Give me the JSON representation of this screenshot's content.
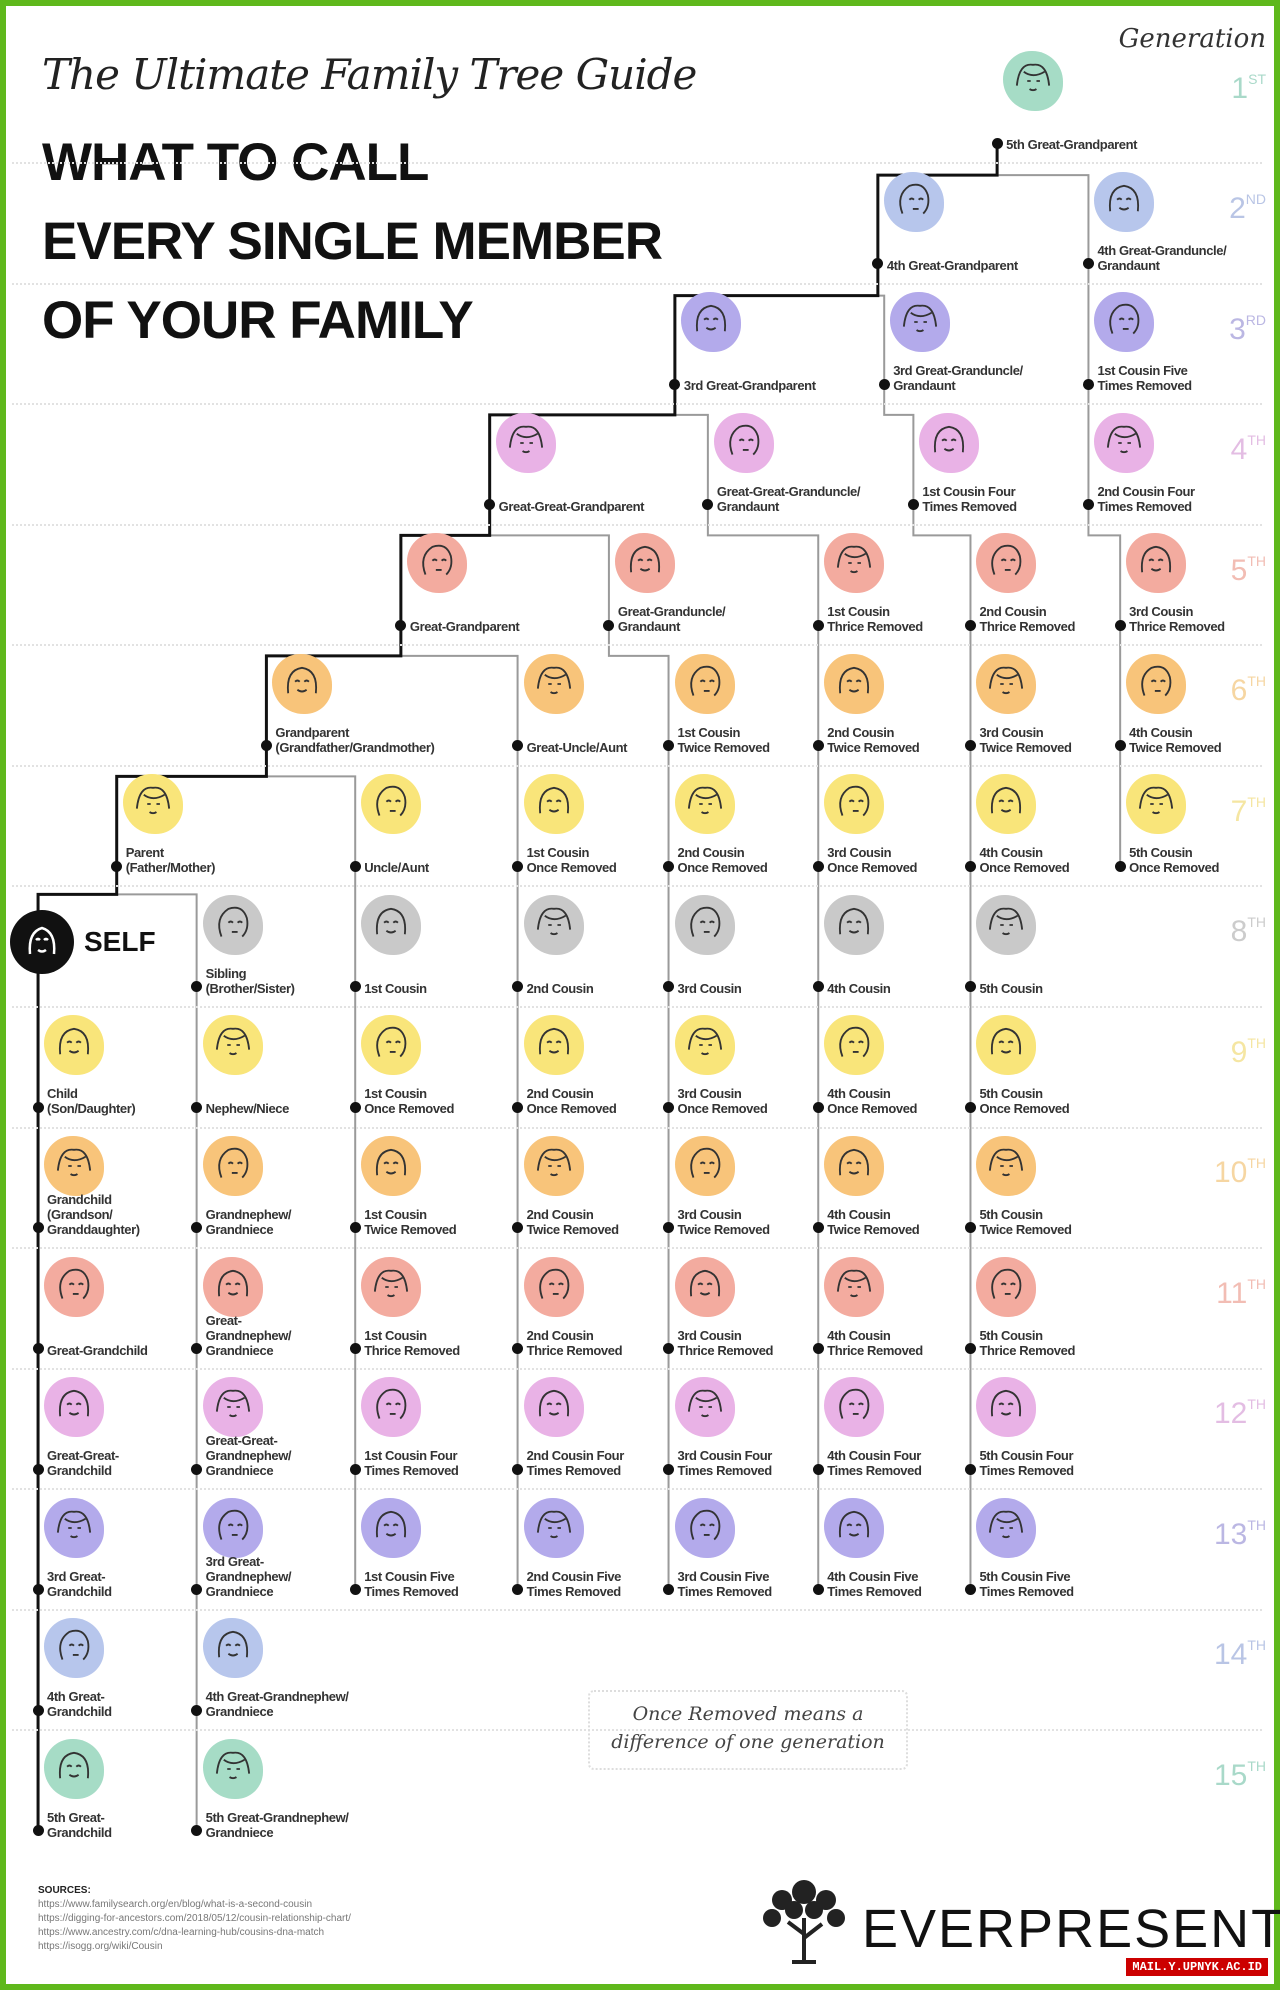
{
  "title_script": "The Ultimate Family Tree Guide",
  "headline": [
    "WHAT TO CALL",
    "EVERY SINGLE MEMBER",
    "OF YOUR FAMILY"
  ],
  "generation_header": "Generation",
  "self_label": "SELF",
  "line_colors": {
    "direct": "#111111",
    "branch": "#9a9a9a"
  },
  "generations": [
    {
      "ordinal": "1",
      "suffix": "ST",
      "label_color": "#a9d9c9",
      "blob_color": "#a6dcc6",
      "members": [
        "5th Great-Grandparent"
      ]
    },
    {
      "ordinal": "2",
      "suffix": "ND",
      "label_color": "#b9c5e5",
      "blob_color": "#b7c6ec",
      "members": [
        "4th Great-Grandparent",
        "4th Great-Granduncle/\nGrandaunt"
      ]
    },
    {
      "ordinal": "3",
      "suffix": "RD",
      "label_color": "#bbb7e3",
      "blob_color": "#b3aaeb",
      "members": [
        "3rd Great-Grandparent",
        "3rd Great-Granduncle/\nGrandaunt",
        "1st Cousin Five\nTimes Removed"
      ]
    },
    {
      "ordinal": "4",
      "suffix": "TH",
      "label_color": "#e3bde3",
      "blob_color": "#e9b2e6",
      "members": [
        "Great-Great-Grandparent",
        "Great-Great-Granduncle/\nGrandaunt",
        "1st Cousin Four\nTimes Removed",
        "2nd Cousin Four\nTimes Removed"
      ]
    },
    {
      "ordinal": "5",
      "suffix": "TH",
      "label_color": "#f2bdb4",
      "blob_color": "#f3ab9f",
      "members": [
        "Great-Grandparent",
        "Great-Granduncle/\nGrandaunt",
        "1st Cousin\nThrice Removed",
        "2nd Cousin\nThrice Removed",
        "3rd Cousin\nThrice Removed"
      ]
    },
    {
      "ordinal": "6",
      "suffix": "TH",
      "label_color": "#f6d6a2",
      "blob_color": "#f8c47a",
      "members": [
        "Grandparent\n(Grandfather/Grandmother)",
        "Great-Uncle/Aunt",
        "1st Cousin\nTwice Removed",
        "2nd Cousin\nTwice Removed",
        "3rd Cousin\nTwice Removed",
        "4th Cousin\nTwice Removed"
      ]
    },
    {
      "ordinal": "7",
      "suffix": "TH",
      "label_color": "#f5e6a2",
      "blob_color": "#f9e57a",
      "members": [
        "Parent\n(Father/Mother)",
        "Uncle/Aunt",
        "1st Cousin\nOnce Removed",
        "2nd Cousin\nOnce Removed",
        "3rd Cousin\nOnce Removed",
        "4th Cousin\nOnce Removed",
        "5th Cousin\nOnce Removed"
      ]
    },
    {
      "ordinal": "8",
      "suffix": "TH",
      "label_color": "#cccccc",
      "blob_color": "#c9c9c9",
      "members": [
        "Sibling\n(Brother/Sister)",
        "1st Cousin",
        "2nd Cousin",
        "3rd Cousin",
        "4th Cousin",
        "5th Cousin"
      ]
    },
    {
      "ordinal": "9",
      "suffix": "TH",
      "label_color": "#f5e6a2",
      "blob_color": "#f9e57a",
      "members": [
        "Child\n(Son/Daughter)",
        "Nephew/Niece",
        "1st Cousin\nOnce Removed",
        "2nd Cousin\nOnce Removed",
        "3rd Cousin\nOnce Removed",
        "4th Cousin\nOnce Removed",
        "5th Cousin\nOnce Removed"
      ]
    },
    {
      "ordinal": "10",
      "suffix": "TH",
      "label_color": "#f6d6a2",
      "blob_color": "#f8c47a",
      "members": [
        "Grandchild\n(Grandson/\nGranddaughter)",
        "Grandnephew/\nGrandniece",
        "1st Cousin\nTwice Removed",
        "2nd Cousin\nTwice Removed",
        "3rd Cousin\nTwice Removed",
        "4th Cousin\nTwice Removed",
        "5th Cousin\nTwice Removed"
      ]
    },
    {
      "ordinal": "11",
      "suffix": "TH",
      "label_color": "#f2bdb4",
      "blob_color": "#f3ab9f",
      "members": [
        "Great-Grandchild",
        "Great-\nGrandnephew/\nGrandniece",
        "1st Cousin\nThrice Removed",
        "2nd Cousin\nThrice Removed",
        "3rd Cousin\nThrice Removed",
        "4th Cousin\nThrice Removed",
        "5th Cousin\nThrice Removed"
      ]
    },
    {
      "ordinal": "12",
      "suffix": "TH",
      "label_color": "#e3bde3",
      "blob_color": "#e9b2e6",
      "members": [
        "Great-Great-\nGrandchild",
        "Great-Great-\nGrandnephew/\nGrandniece",
        "1st Cousin Four\nTimes Removed",
        "2nd Cousin Four\nTimes Removed",
        "3rd Cousin Four\nTimes Removed",
        "4th Cousin Four\nTimes Removed",
        "5th Cousin Four\nTimes Removed"
      ]
    },
    {
      "ordinal": "13",
      "suffix": "TH",
      "label_color": "#bbb7e3",
      "blob_color": "#b3aaeb",
      "members": [
        "3rd Great-\nGrandchild",
        "3rd Great-\nGrandnephew/\nGrandniece",
        "1st Cousin Five\nTimes Removed",
        "2nd Cousin Five\nTimes Removed",
        "3rd Cousin Five\nTimes Removed",
        "4th Cousin Five\nTimes Removed",
        "5th Cousin Five\nTimes Removed"
      ]
    },
    {
      "ordinal": "14",
      "suffix": "TH",
      "label_color": "#b9c5e5",
      "blob_color": "#b7c6ec",
      "members": [
        "4th Great-\nGrandchild",
        "4th Great-Grandnephew/\nGrandniece"
      ]
    },
    {
      "ordinal": "15",
      "suffix": "TH",
      "label_color": "#a9d9c9",
      "blob_color": "#a6dcc6",
      "members": [
        "5th Great-\nGrandchild",
        "5th Great-Grandnephew/\nGrandniece"
      ]
    }
  ],
  "note": {
    "line1": "Once Removed means a",
    "line2": "difference of one generation"
  },
  "sources": {
    "heading": "SOURCES:",
    "urls": [
      "https://www.familysearch.org/en/blog/what-is-a-second-cousin",
      "https://digging-for-ancestors.com/2018/05/12/cousin-relationship-chart/",
      "https://www.ancestry.com/c/dna-learning-hub/cousins-dna-match",
      "https://isogg.org/wiki/Cousin"
    ]
  },
  "brand": "EVERPRESENT",
  "watermark": "MAIL.Y.UPNYK.AC.ID",
  "border_color": "#5fb81c"
}
